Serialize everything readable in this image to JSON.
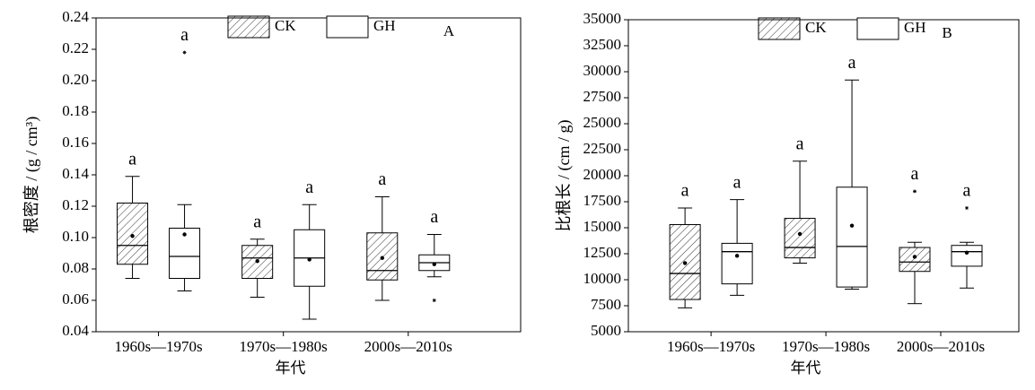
{
  "chart_data": [
    {
      "type": "box",
      "title": "A",
      "xlabel": "年代",
      "ylabel": "根密度 / (g / cm³)",
      "categories": [
        "1960s—1970s",
        "1970s—1980s",
        "2000s—2010s"
      ],
      "ylim": [
        0.04,
        0.24
      ],
      "yticks": [
        0.04,
        0.06,
        0.08,
        {
          "value": 0.1,
          "label": "0.10"
        },
        0.12,
        0.14,
        0.16,
        0.18,
        {
          "value": 0.2,
          "label": "0.20"
        },
        0.22,
        0.24
      ],
      "series": [
        {
          "name": "CK",
          "pattern": "hatch",
          "whislo": [
            0.074,
            0.062,
            0.06
          ],
          "q1": [
            0.083,
            0.074,
            0.073
          ],
          "med": [
            0.095,
            0.087,
            0.079
          ],
          "q3": [
            0.122,
            0.095,
            0.103
          ],
          "whishi": [
            0.139,
            0.099,
            0.126
          ],
          "mean": [
            0.101,
            0.085,
            0.087
          ],
          "outliers": [
            [],
            [],
            []
          ],
          "letters": [
            "a",
            "a",
            "a"
          ]
        },
        {
          "name": "GH",
          "pattern": "none",
          "whislo": [
            0.066,
            0.048,
            0.075
          ],
          "q1": [
            0.074,
            0.069,
            0.079
          ],
          "med": [
            0.088,
            0.087,
            0.084
          ],
          "q3": [
            0.106,
            0.105,
            0.089
          ],
          "whishi": [
            0.121,
            0.121,
            0.102
          ],
          "mean": [
            0.102,
            0.086,
            0.083
          ],
          "outliers": [
            [
              0.218
            ],
            [],
            [
              0.06
            ]
          ],
          "letters": [
            "a",
            "a",
            "a"
          ]
        }
      ]
    },
    {
      "type": "box",
      "title": "B",
      "xlabel": "年代",
      "ylabel": "比根长 / (cm / g)",
      "categories": [
        "1960s—1970s",
        "1970s—1980s",
        "2000s—2010s"
      ],
      "ylim": [
        5000,
        35000
      ],
      "yticks": [
        5000,
        7500,
        10000,
        12500,
        15000,
        17500,
        20000,
        22500,
        25000,
        27500,
        30000,
        32500,
        35000
      ],
      "series": [
        {
          "name": "CK",
          "pattern": "hatch",
          "whislo": [
            7300,
            11600,
            7700
          ],
          "q1": [
            8100,
            12100,
            10800
          ],
          "med": [
            10600,
            13100,
            11700
          ],
          "q3": [
            15300,
            15900,
            13100
          ],
          "whishi": [
            16900,
            21400,
            13600
          ],
          "mean": [
            11600,
            14400,
            12200
          ],
          "outliers": [
            [],
            [],
            [
              18500
            ]
          ],
          "letters": [
            "a",
            "a",
            "a"
          ]
        },
        {
          "name": "GH",
          "pattern": "none",
          "whislo": [
            8500,
            9100,
            9200
          ],
          "q1": [
            9600,
            9300,
            11300
          ],
          "med": [
            12700,
            13200,
            12700
          ],
          "q3": [
            13500,
            18900,
            13300
          ],
          "whishi": [
            17700,
            29200,
            13600
          ],
          "mean": [
            12300,
            15200,
            12600
          ],
          "outliers": [
            [],
            [],
            [
              16900
            ]
          ],
          "letters": [
            "a",
            "a",
            "a"
          ]
        }
      ]
    }
  ]
}
